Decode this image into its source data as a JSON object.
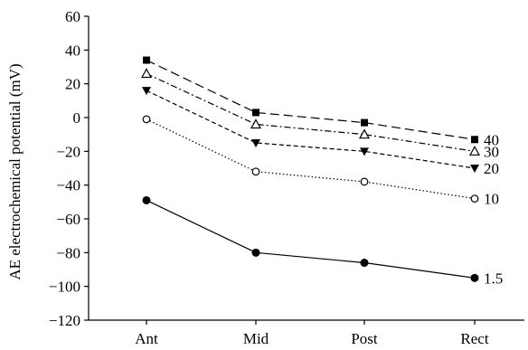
{
  "chart_data": {
    "type": "line",
    "title": "",
    "xlabel": "",
    "ylabel": "AE electrochemical potential (mV)",
    "categories": [
      "Ant",
      "Mid",
      "Post",
      "Rect"
    ],
    "ylim": [
      -120,
      60
    ],
    "yticks": [
      "60",
      "40",
      "20",
      "0",
      "−20",
      "−40",
      "−60",
      "−80",
      "−100",
      "−120"
    ],
    "grid": false,
    "legend": "end-of-line labels",
    "series": [
      {
        "name": "40",
        "values": [
          34,
          3,
          -3,
          -13
        ],
        "marker": "square",
        "dash": "long-dash"
      },
      {
        "name": "30",
        "values": [
          26,
          -4,
          -10,
          -20
        ],
        "marker": "triangle-open",
        "dash": "dash-dot"
      },
      {
        "name": "20",
        "values": [
          16,
          -15,
          -20,
          -30
        ],
        "marker": "triangle-down",
        "dash": "short-dash"
      },
      {
        "name": "10",
        "values": [
          -1,
          -32,
          -38,
          -48
        ],
        "marker": "circle-open",
        "dash": "dotted"
      },
      {
        "name": "1.5",
        "values": [
          -49,
          -80,
          -86,
          -95
        ],
        "marker": "circle",
        "dash": "solid"
      }
    ]
  }
}
